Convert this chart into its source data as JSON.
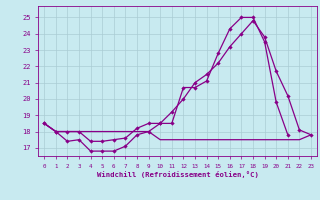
{
  "background_color": "#c8eaf0",
  "grid_color": "#aaccd4",
  "line_color": "#880088",
  "xlim": [
    -0.5,
    23.5
  ],
  "ylim": [
    16.5,
    25.7
  ],
  "yticks": [
    17,
    18,
    19,
    20,
    21,
    22,
    23,
    24,
    25
  ],
  "xticks": [
    0,
    1,
    2,
    3,
    4,
    5,
    6,
    7,
    8,
    9,
    10,
    11,
    12,
    13,
    14,
    15,
    16,
    17,
    18,
    19,
    20,
    21,
    22,
    23
  ],
  "xlabel": "Windchill (Refroidissement éolien,°C)",
  "line1_x": [
    0,
    1,
    2,
    3,
    4,
    5,
    6,
    7,
    8,
    9,
    10,
    11,
    12,
    13,
    14,
    15,
    16,
    17,
    18,
    19,
    20,
    21,
    22,
    23
  ],
  "line1_y": [
    18.5,
    18.0,
    17.4,
    17.5,
    16.8,
    16.8,
    16.8,
    17.1,
    17.8,
    18.0,
    18.5,
    18.5,
    20.7,
    20.7,
    21.1,
    22.8,
    24.3,
    25.0,
    25.0,
    23.5,
    19.8,
    17.8,
    null,
    null
  ],
  "line2_x": [
    0,
    1,
    2,
    3,
    4,
    5,
    6,
    7,
    8,
    9,
    10,
    11,
    12,
    13,
    14,
    15,
    16,
    17,
    18,
    19,
    20,
    21,
    22,
    23
  ],
  "line2_y": [
    18.5,
    18.0,
    18.0,
    18.0,
    18.0,
    18.0,
    18.0,
    18.0,
    18.0,
    18.0,
    17.5,
    17.5,
    17.5,
    17.5,
    17.5,
    17.5,
    17.5,
    17.5,
    17.5,
    17.5,
    17.5,
    17.5,
    17.5,
    17.8
  ],
  "line3_x": [
    0,
    1,
    2,
    3,
    4,
    5,
    6,
    7,
    8,
    9,
    10,
    11,
    12,
    13,
    14,
    15,
    16,
    17,
    18,
    19,
    20,
    21,
    22,
    23
  ],
  "line3_y": [
    18.5,
    18.0,
    18.0,
    18.0,
    17.4,
    17.4,
    17.5,
    17.6,
    18.2,
    18.5,
    18.5,
    19.2,
    20.0,
    21.0,
    21.5,
    22.2,
    23.2,
    24.0,
    24.8,
    23.8,
    21.7,
    20.2,
    18.1,
    17.8
  ]
}
